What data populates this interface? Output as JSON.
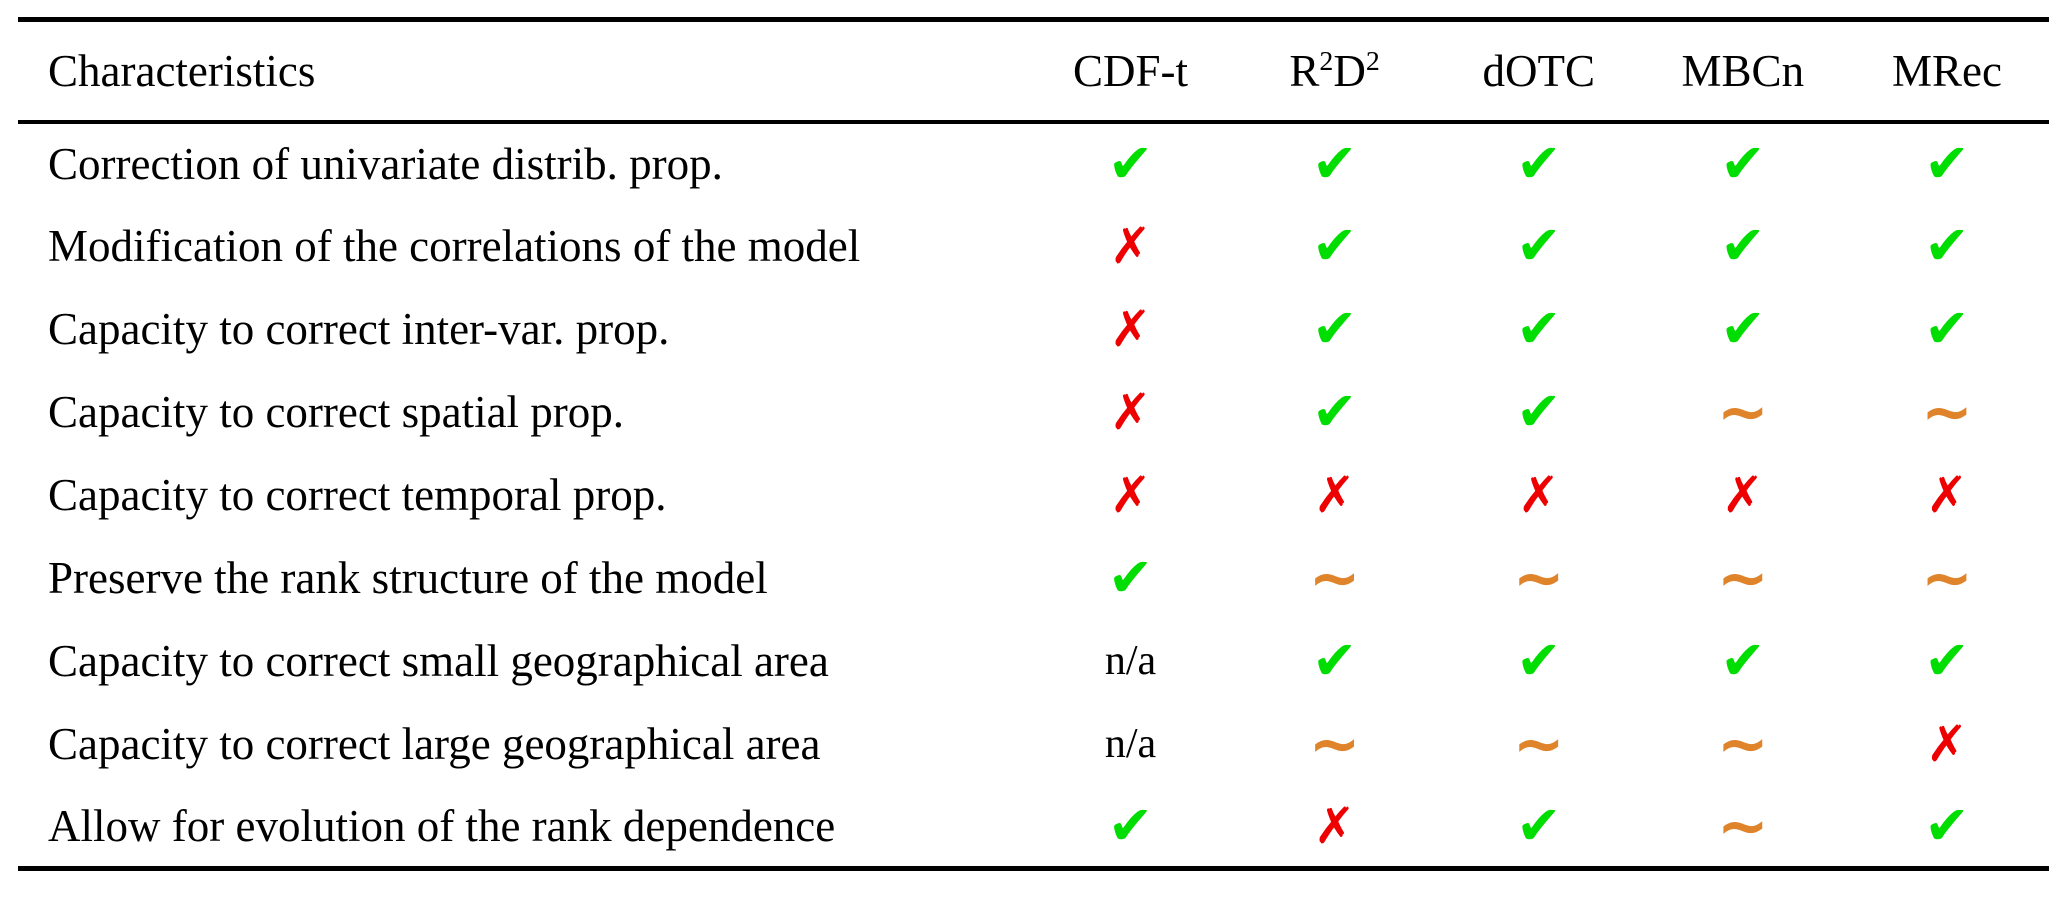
{
  "table": {
    "header": {
      "row_label": "Characteristics",
      "columns": [
        "CDF-t",
        "R^2D^2",
        "dOTC",
        "MBCn",
        "MRec"
      ]
    },
    "rows": [
      {
        "label": "Correction of univariate distrib. prop.",
        "cells": [
          "check",
          "check",
          "check",
          "check",
          "check"
        ]
      },
      {
        "label": "Modification of the correlations of the model",
        "cells": [
          "cross",
          "check",
          "check",
          "check",
          "check"
        ]
      },
      {
        "label": "Capacity to correct inter-var. prop.",
        "cells": [
          "cross",
          "check",
          "check",
          "check",
          "check"
        ]
      },
      {
        "label": "Capacity to correct spatial prop.",
        "cells": [
          "cross",
          "check",
          "check",
          "tilde",
          "tilde"
        ]
      },
      {
        "label": "Capacity to correct temporal prop.",
        "cells": [
          "cross",
          "cross",
          "cross",
          "cross",
          "cross"
        ]
      },
      {
        "label": "Preserve the rank structure of the model",
        "cells": [
          "check",
          "tilde",
          "tilde",
          "tilde",
          "tilde"
        ]
      },
      {
        "label": "Capacity to correct small geographical area",
        "cells": [
          "na",
          "check",
          "check",
          "check",
          "check"
        ]
      },
      {
        "label": "Capacity to correct large geographical area",
        "cells": [
          "na",
          "tilde",
          "tilde",
          "tilde",
          "cross"
        ]
      },
      {
        "label": "Allow for evolution of the rank dependence",
        "cells": [
          "check",
          "cross",
          "check",
          "tilde",
          "check"
        ]
      }
    ]
  },
  "symbols": {
    "check": {
      "glyph": "✔",
      "color": "#00DD00",
      "name": "check-icon",
      "meaning": "yes"
    },
    "cross": {
      "glyph": "✗",
      "color": "#EE0000",
      "name": "cross-icon",
      "meaning": "no"
    },
    "tilde": {
      "glyph": "∼",
      "color": "#E0842C",
      "name": "tilde-icon",
      "meaning": "partial"
    },
    "na": {
      "glyph": "n/a",
      "color": "#000000",
      "name": "na-text",
      "meaning": "not applicable"
    }
  },
  "colors": {
    "background": "#FFFFFF",
    "text": "#000000",
    "rule": "#000000",
    "check_green": "#00DD00",
    "cross_red": "#EE0000",
    "tilde_orange": "#E0842C"
  }
}
